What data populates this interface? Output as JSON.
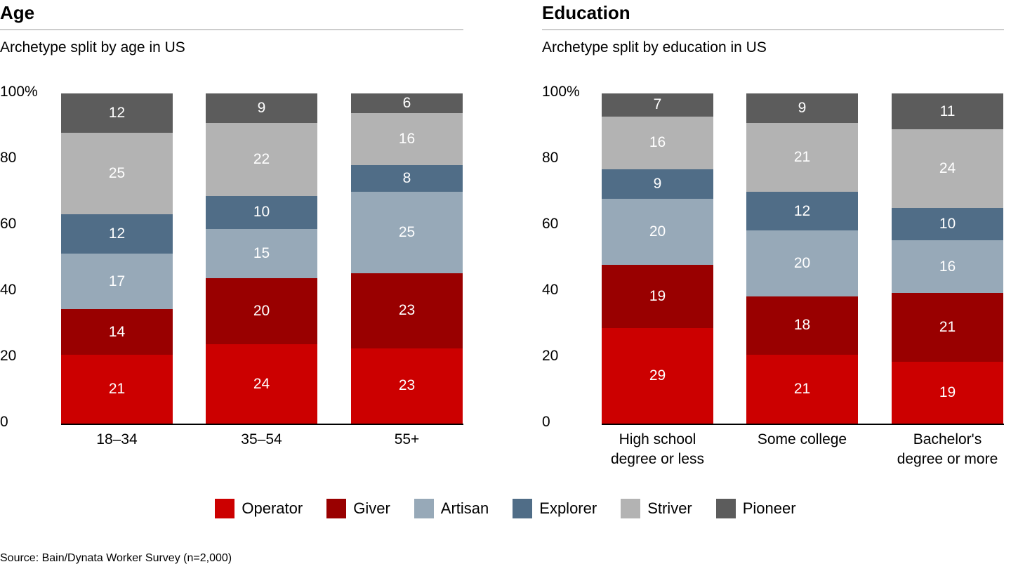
{
  "series_colors": {
    "Operator": "#cc0000",
    "Giver": "#990000",
    "Artisan": "#97a9b8",
    "Explorer": "#506d87",
    "Striver": "#b3b3b3",
    "Pioneer": "#5c5c5c"
  },
  "chart_data": [
    {
      "type": "bar",
      "stacked": true,
      "title": "Age",
      "subtitle": "Archetype split by age in US",
      "categories": [
        "18–34",
        "35–54",
        "55+"
      ],
      "yticks": [
        "0",
        "20",
        "40",
        "60",
        "80",
        "100%"
      ],
      "ylim": [
        0,
        100
      ],
      "series": [
        {
          "name": "Operator",
          "values": [
            21,
            24,
            23
          ]
        },
        {
          "name": "Giver",
          "values": [
            14,
            20,
            23
          ]
        },
        {
          "name": "Artisan",
          "values": [
            17,
            15,
            25
          ]
        },
        {
          "name": "Explorer",
          "values": [
            12,
            10,
            8
          ]
        },
        {
          "name": "Striver",
          "values": [
            25,
            22,
            16
          ]
        },
        {
          "name": "Pioneer",
          "values": [
            12,
            9,
            6
          ]
        }
      ]
    },
    {
      "type": "bar",
      "stacked": true,
      "title": "Education",
      "subtitle": "Archetype split by education in US",
      "categories": [
        "High school\ndegree or less",
        "Some college",
        "Bachelor's\ndegree or more"
      ],
      "yticks": [
        "0",
        "20",
        "40",
        "60",
        "80",
        "100%"
      ],
      "ylim": [
        0,
        100
      ],
      "series": [
        {
          "name": "Operator",
          "values": [
            29,
            21,
            19
          ]
        },
        {
          "name": "Giver",
          "values": [
            19,
            18,
            21
          ]
        },
        {
          "name": "Artisan",
          "values": [
            20,
            20,
            16
          ]
        },
        {
          "name": "Explorer",
          "values": [
            9,
            12,
            10
          ]
        },
        {
          "name": "Striver",
          "values": [
            16,
            21,
            24
          ]
        },
        {
          "name": "Pioneer",
          "values": [
            7,
            9,
            11
          ]
        }
      ]
    }
  ],
  "legend": [
    "Operator",
    "Giver",
    "Artisan",
    "Explorer",
    "Striver",
    "Pioneer"
  ],
  "source": "Source: Bain/Dynata Worker Survey (n=2,000)"
}
